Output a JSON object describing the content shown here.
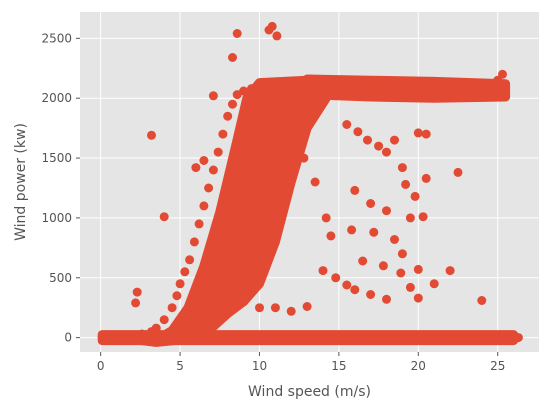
{
  "chart_data": {
    "type": "scatter",
    "title": "",
    "xlabel": "Wind speed (m/s)",
    "ylabel": "Wind power (kw)",
    "xlim": [
      -1.3,
      27.6
    ],
    "ylim": [
      -120,
      2720
    ],
    "xticks": [
      0,
      5,
      10,
      15,
      20,
      25
    ],
    "yticks": [
      0,
      500,
      1000,
      1500,
      2000,
      2500
    ],
    "xtick_labels": [
      "0",
      "5",
      "10",
      "15",
      "20",
      "25"
    ],
    "ytick_labels": [
      "0",
      "500",
      "1000",
      "1500",
      "2000",
      "2500"
    ],
    "grid": true,
    "legend": "none",
    "colors": {
      "background": "#E5E5E5",
      "grid": "#FFFFFF",
      "marker": "#E24A33",
      "text": "#555555"
    },
    "series": [
      {
        "points": [
          [
            0.1,
            0
          ],
          [
            0.3,
            -5
          ],
          [
            0.5,
            2
          ],
          [
            0.8,
            -3
          ],
          [
            1.0,
            5
          ],
          [
            1.2,
            -8
          ],
          [
            1.5,
            10
          ],
          [
            1.8,
            -4
          ],
          [
            2.0,
            20
          ],
          [
            2.3,
            -10
          ],
          [
            2.6,
            30
          ],
          [
            2.9,
            -15
          ],
          [
            3.2,
            50
          ],
          [
            3.5,
            80
          ],
          [
            3.7,
            -20
          ],
          [
            4.0,
            150
          ],
          [
            4.2,
            -25
          ],
          [
            4.5,
            250
          ],
          [
            4.8,
            350
          ],
          [
            5.0,
            450
          ],
          [
            5.3,
            550
          ],
          [
            5.6,
            650
          ],
          [
            5.9,
            800
          ],
          [
            6.2,
            950
          ],
          [
            6.5,
            1100
          ],
          [
            6.8,
            1250
          ],
          [
            7.1,
            1400
          ],
          [
            7.4,
            1550
          ],
          [
            7.7,
            1700
          ],
          [
            8.0,
            1850
          ],
          [
            8.3,
            1950
          ],
          [
            8.6,
            2030
          ],
          [
            9.0,
            2060
          ],
          [
            9.5,
            2080
          ],
          [
            10.0,
            2090
          ],
          [
            11.0,
            2100
          ],
          [
            12.0,
            2095
          ],
          [
            13.0,
            2100
          ],
          [
            14.0,
            2090
          ],
          [
            15.0,
            2085
          ],
          [
            16.0,
            2080
          ],
          [
            17.0,
            2075
          ],
          [
            18.0,
            2070
          ],
          [
            19.0,
            2060
          ],
          [
            20.0,
            2050
          ],
          [
            21.0,
            2040
          ],
          [
            22.0,
            2040
          ],
          [
            23.0,
            2060
          ],
          [
            24.0,
            2090
          ],
          [
            25.0,
            2150
          ],
          [
            25.3,
            2200
          ],
          [
            24.8,
            2030
          ],
          [
            25.5,
            2070
          ],
          [
            2.3,
            380
          ],
          [
            2.2,
            290
          ],
          [
            3.2,
            1690
          ],
          [
            4.0,
            1010
          ],
          [
            8.6,
            2540
          ],
          [
            8.3,
            2340
          ],
          [
            10.6,
            2570
          ],
          [
            10.8,
            2600
          ],
          [
            11.1,
            2520
          ],
          [
            7.1,
            2020
          ],
          [
            6.5,
            1480
          ],
          [
            6.0,
            1420
          ],
          [
            15.5,
            1780
          ],
          [
            16.2,
            1720
          ],
          [
            16.8,
            1650
          ],
          [
            17.5,
            1600
          ],
          [
            18.0,
            1550
          ],
          [
            18.5,
            1650
          ],
          [
            19.0,
            1420
          ],
          [
            20.0,
            1710
          ],
          [
            20.5,
            1700
          ],
          [
            22.5,
            1380
          ],
          [
            19.5,
            1000
          ],
          [
            20.3,
            1010
          ],
          [
            18.0,
            1060
          ],
          [
            17.0,
            1120
          ],
          [
            16.0,
            1230
          ],
          [
            18.5,
            820
          ],
          [
            19.0,
            700
          ],
          [
            20.0,
            570
          ],
          [
            22.0,
            560
          ],
          [
            21.0,
            450
          ],
          [
            19.5,
            420
          ],
          [
            20.0,
            330
          ],
          [
            18.0,
            320
          ],
          [
            17.0,
            360
          ],
          [
            16.0,
            400
          ],
          [
            15.5,
            440
          ],
          [
            14.8,
            500
          ],
          [
            14.0,
            560
          ],
          [
            24.0,
            310
          ],
          [
            13.0,
            260
          ],
          [
            12.0,
            220
          ],
          [
            11.0,
            250
          ],
          [
            10.0,
            250
          ],
          [
            9.0,
            300
          ],
          [
            8.0,
            320
          ],
          [
            7.5,
            260
          ],
          [
            7.0,
            350
          ],
          [
            6.5,
            220
          ],
          [
            6.0,
            120
          ],
          [
            5.5,
            60
          ],
          [
            26.3,
            0
          ],
          [
            24.5,
            -5
          ],
          [
            23.0,
            0
          ],
          [
            22.0,
            -3
          ],
          [
            21.0,
            5
          ],
          [
            20.0,
            -2
          ],
          [
            19.0,
            4
          ],
          [
            18.0,
            0
          ],
          [
            17.0,
            -5
          ],
          [
            16.0,
            3
          ],
          [
            15.0,
            0
          ],
          [
            14.0,
            -4
          ],
          [
            13.0,
            5
          ],
          [
            12.0,
            0
          ],
          [
            11.0,
            -6
          ],
          [
            10.0,
            0
          ],
          [
            9.0,
            -8
          ],
          [
            8.0,
            -10
          ],
          [
            7.0,
            -12
          ],
          [
            6.0,
            -15
          ],
          [
            5.0,
            -20
          ],
          [
            4.5,
            -25
          ],
          [
            4.0,
            -30
          ],
          [
            3.5,
            -35
          ],
          [
            3.0,
            -30
          ],
          [
            5.0,
            8
          ],
          [
            7.5,
            -20
          ],
          [
            9.5,
            -15
          ],
          [
            12.5,
            -10
          ],
          [
            15.5,
            5
          ],
          [
            18.5,
            -5
          ],
          [
            21.5,
            2
          ],
          [
            23.5,
            -3
          ],
          [
            20.5,
            1330
          ],
          [
            14.2,
            1000
          ],
          [
            13.5,
            1300
          ],
          [
            12.8,
            1500
          ],
          [
            14.5,
            850
          ],
          [
            15.8,
            900
          ],
          [
            17.2,
            880
          ],
          [
            16.5,
            640
          ],
          [
            17.8,
            600
          ],
          [
            18.9,
            540
          ],
          [
            19.8,
            1180
          ],
          [
            19.2,
            1280
          ]
        ]
      }
    ]
  }
}
